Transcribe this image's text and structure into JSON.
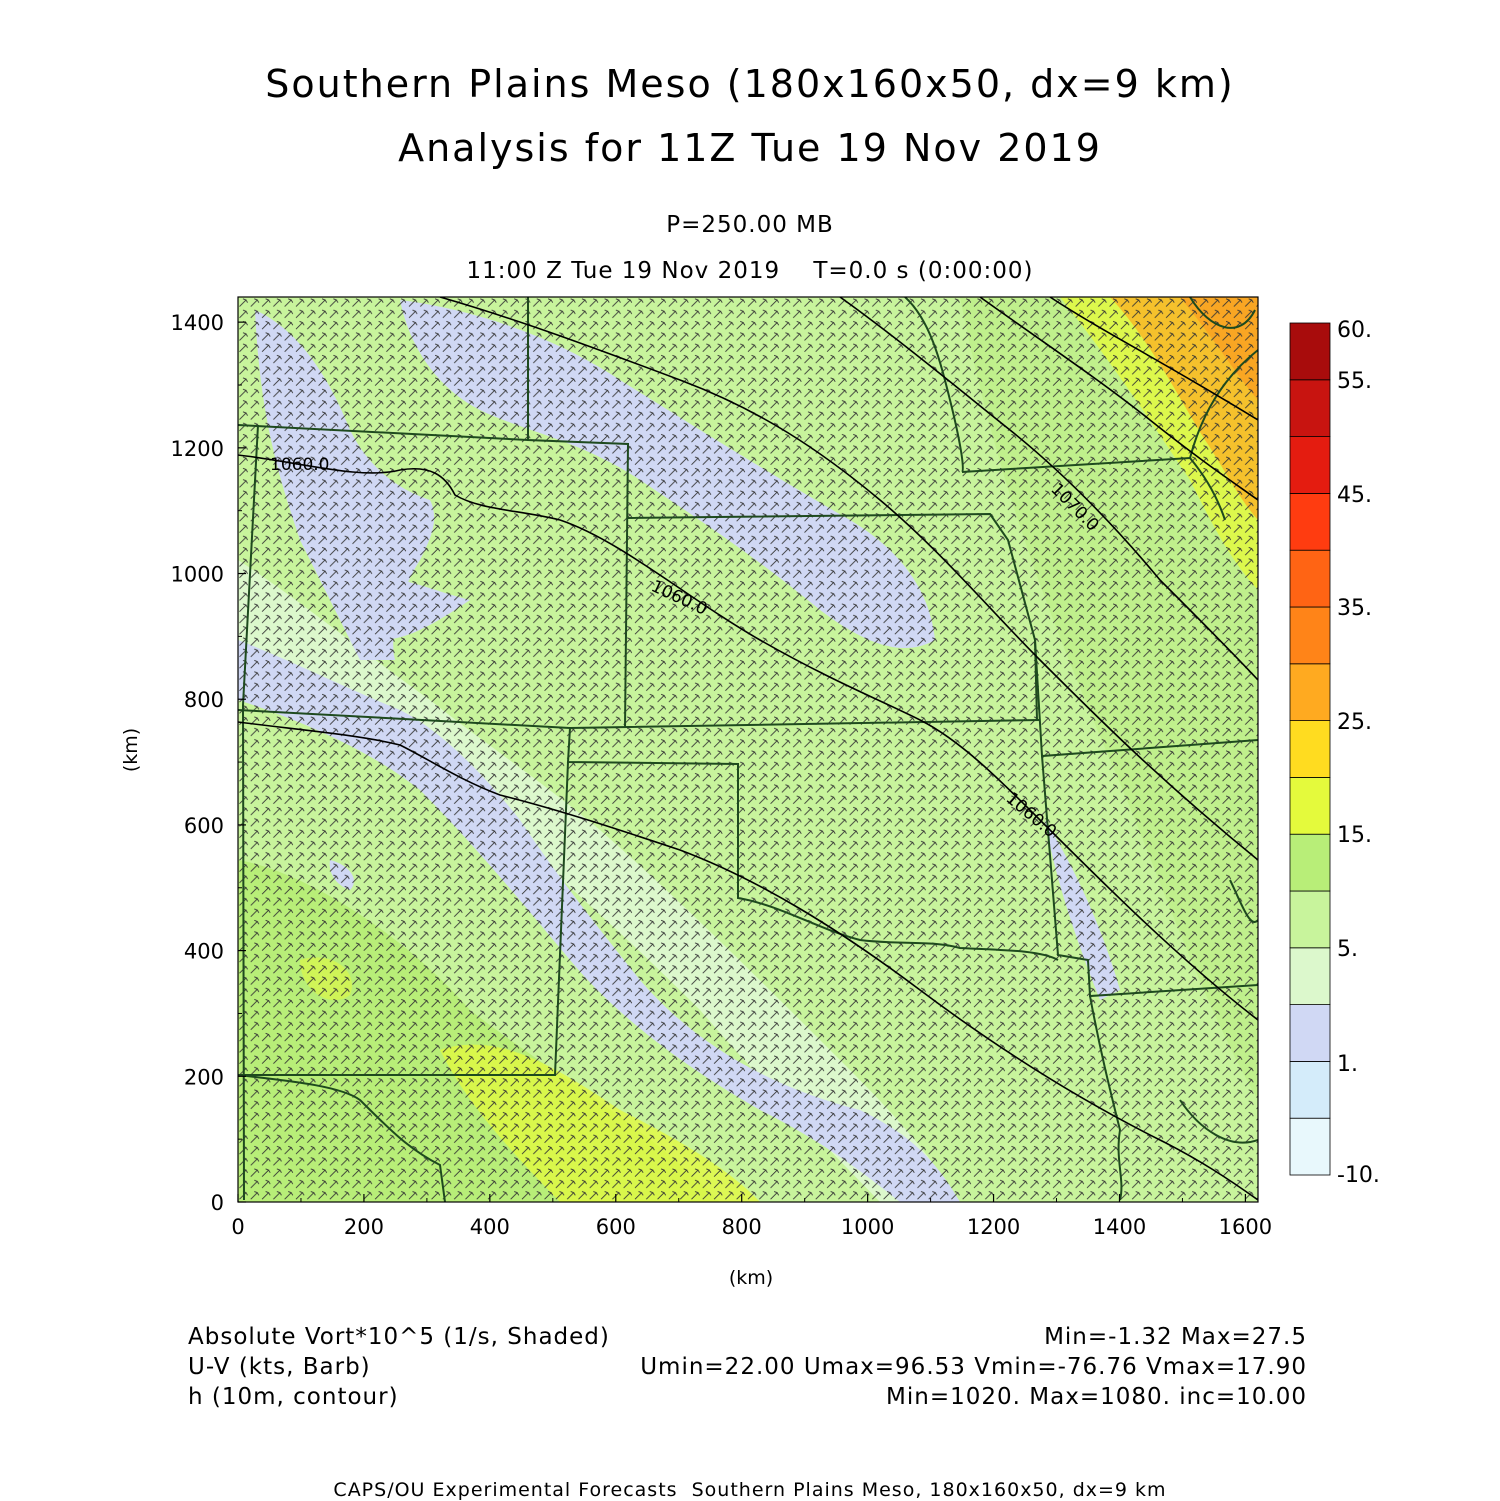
{
  "header": {
    "title_line1": "Southern Plains Meso (180x160x50, dx=9 km)",
    "title_line2": "Analysis for 11Z Tue 19 Nov 2019",
    "level": "P=250.00 MB",
    "time_info": "11:00 Z Tue 19 Nov 2019    T=0.0 s (0:00:00)"
  },
  "axes": {
    "x_label": "(km)",
    "y_label": "(km)",
    "x_ticks": [
      "0",
      "200",
      "400",
      "600",
      "800",
      "1000",
      "1200",
      "1400",
      "1600"
    ],
    "y_ticks": [
      "0",
      "200",
      "400",
      "600",
      "800",
      "1000",
      "1200",
      "1400"
    ],
    "x_range_km": [
      0,
      1620
    ],
    "y_range_km": [
      0,
      1440
    ]
  },
  "colorbar": {
    "labels": [
      "60.",
      "55.",
      "45.",
      "35.",
      "25.",
      "15.",
      "5.",
      "1.",
      "-10."
    ],
    "colors_bottom_to_top": [
      "#e8f8fc",
      "#d4ecfa",
      "#d0d8f4",
      "#dcf8cc",
      "#c8f49c",
      "#b8ee78",
      "#e4fa3c",
      "#ffdc20",
      "#ffaa20",
      "#ff8418",
      "#ff6414",
      "#ff3c10",
      "#e41c10",
      "#c81410",
      "#a80c0c"
    ]
  },
  "contours": {
    "labels": [
      "1060.0",
      "1060.0",
      "1070.0",
      "1060.0"
    ]
  },
  "footer": {
    "left": [
      "Absolute Vort*10^5 (1/s, Shaded)",
      "U-V (kts, Barb)",
      "h (10m, contour)"
    ],
    "right": [
      "Min=-1.32 Max=27.5",
      "Umin=22.00 Umax=96.53 Vmin=-76.76 Vmax=17.90",
      "Min=1020. Max=1080. inc=10.00"
    ],
    "credit": "CAPS/OU Experimental Forecasts  Southern Plains Meso, 180x160x50, dx=9 km"
  },
  "colors": {
    "border": "#1e4a1e",
    "contour": "#000000",
    "barb": "#333333"
  }
}
